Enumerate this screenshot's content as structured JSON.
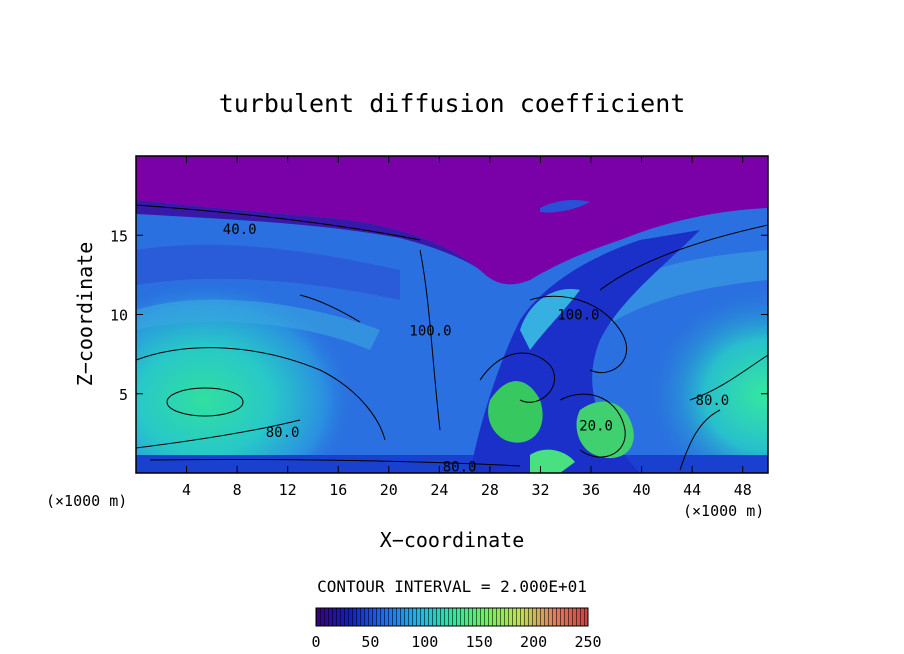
{
  "chart_data": {
    "type": "heatmap",
    "title": "turbulent diffusion coefficient",
    "xlabel": "X−coordinate",
    "ylabel": "Z−coordinate",
    "x_unit_left": "(×1000 m)",
    "x_unit_right": "(×1000 m)",
    "xlim": [
      0,
      50
    ],
    "ylim": [
      0,
      20
    ],
    "x_ticks": [
      4,
      8,
      12,
      16,
      20,
      24,
      28,
      32,
      36,
      40,
      44,
      48
    ],
    "y_ticks": [
      5,
      10,
      15
    ],
    "contour_interval_text": "CONTOUR INTERVAL = 2.000E+01",
    "contour_labels": [
      {
        "text": "40.0",
        "x": 8.2,
        "z": 15.4
      },
      {
        "text": "80.0",
        "x": 11.6,
        "z": 2.6
      },
      {
        "text": "80.0",
        "x": 25.6,
        "z": 0.4
      },
      {
        "text": "100.0",
        "x": 23.3,
        "z": 9.0
      },
      {
        "text": "100.0",
        "x": 35.0,
        "z": 10.0
      },
      {
        "text": "80.0",
        "x": 45.6,
        "z": 4.6
      },
      {
        "text": "20.0",
        "x": 36.4,
        "z": 3.0
      }
    ],
    "colorbar": {
      "min": 0,
      "max": 250,
      "ticks": [
        0,
        50,
        100,
        150,
        200,
        250
      ],
      "colors": [
        "#3a0080",
        "#1020c0",
        "#1e6cf0",
        "#20b4e8",
        "#2ee6a0",
        "#6ef060",
        "#c0e050",
        "#e08060",
        "#d04040"
      ]
    }
  }
}
